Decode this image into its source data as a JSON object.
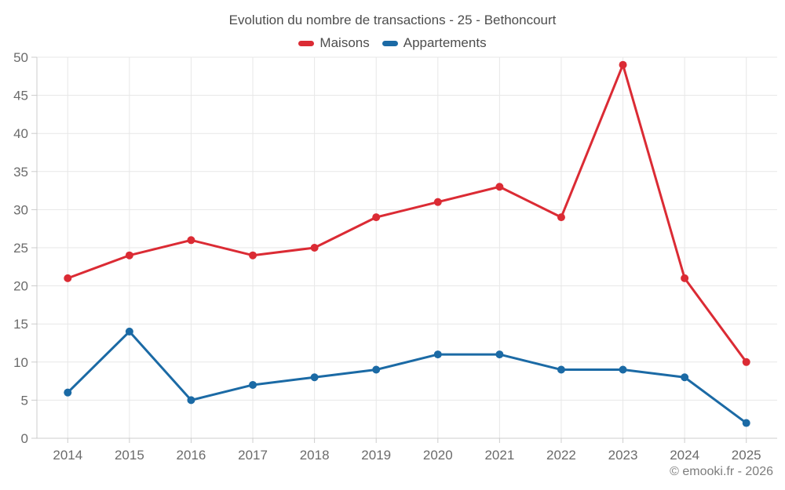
{
  "title": "Evolution du nombre de transactions - 25 - Bethoncourt",
  "footer": "© emooki.fr - 2026",
  "legend": {
    "items": [
      {
        "label": "Maisons",
        "color": "#db2b34"
      },
      {
        "label": "Appartements",
        "color": "#1b6aa5"
      }
    ]
  },
  "colors": {
    "maisons": "#db2b34",
    "appartements": "#1b6aa5",
    "gridline": "#e7e7e7",
    "axis_line": "#cccccc",
    "tick_label": "#6b6b6b",
    "title_text": "#4d4d4d",
    "footer_text": "#7d7d7d",
    "background": "#ffffff"
  },
  "chart_data": {
    "type": "line",
    "title": "Evolution du nombre de transactions - 25 - Bethoncourt",
    "categories": [
      "2014",
      "2015",
      "2016",
      "2017",
      "2018",
      "2019",
      "2020",
      "2021",
      "2022",
      "2023",
      "2024",
      "2025"
    ],
    "series": [
      {
        "name": "Maisons",
        "color": "#db2b34",
        "values": [
          21,
          24,
          26,
          24,
          25,
          29,
          31,
          33,
          29,
          49,
          21,
          10
        ]
      },
      {
        "name": "Appartements",
        "color": "#1b6aa5",
        "values": [
          6,
          14,
          5,
          7,
          8,
          9,
          11,
          11,
          9,
          9,
          8,
          2
        ]
      }
    ],
    "xlabel": "",
    "ylabel": "",
    "ylim": [
      0,
      50
    ],
    "yticks": [
      0,
      5,
      10,
      15,
      20,
      25,
      30,
      35,
      40,
      45,
      50
    ],
    "grid": true,
    "legend_position": "top",
    "markers": true
  }
}
